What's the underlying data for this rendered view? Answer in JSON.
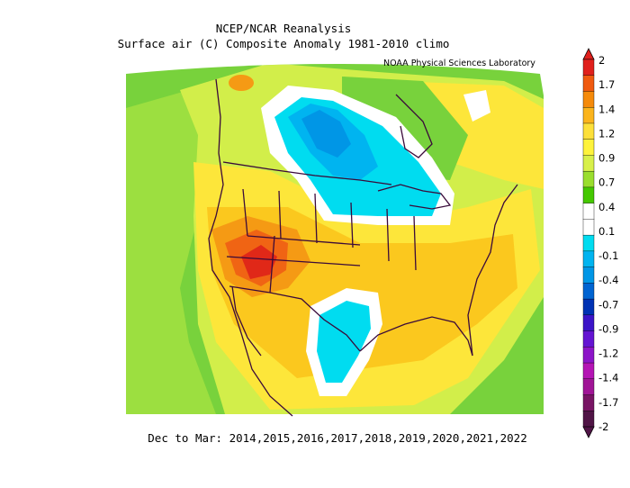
{
  "header": {
    "title": "NCEP/NCAR Reanalysis",
    "subtitle": "Surface air (C) Composite Anomaly 1981-2010 climo",
    "credit": "NOAA Physical Sciences Laboratory"
  },
  "footer": {
    "period": "Dec to Mar: 2014,2015,2016,2017,2018,2019,2020,2021,2022"
  },
  "legend": {
    "labels": [
      "2",
      "1.7",
      "1.4",
      "1.2",
      "0.9",
      "0.7",
      "0.4",
      "0.1",
      "-0.1",
      "-0.4",
      "-0.7",
      "-0.9",
      "-1.2",
      "-1.4",
      "-1.7",
      "-2"
    ],
    "colors": [
      "#e0201c",
      "#f05a10",
      "#f58a0a",
      "#fbb41c",
      "#fde03a",
      "#fef33c",
      "#d8f04a",
      "#9ade2e",
      "#44c800",
      "#ffffff",
      "#ffffff",
      "#00dcf0",
      "#00b4f0",
      "#0096e6",
      "#0064d2",
      "#0032b4",
      "#3c14c8",
      "#6414d2",
      "#8c14c8",
      "#b414b4",
      "#a01496",
      "#781464",
      "#501446"
    ]
  },
  "map_colors": {
    "background": "#78d23c",
    "green_light": "#a0e040",
    "yellow_green": "#d2ee4a",
    "yellow": "#fde63a",
    "gold": "#fbc81e",
    "orange": "#f59a14",
    "red_orange": "#f06414",
    "red": "#e02818",
    "white": "#ffffff",
    "cyan": "#00dcf0",
    "light_blue": "#00b4f0",
    "blue": "#0096e6",
    "border": "#3a0a3a"
  }
}
